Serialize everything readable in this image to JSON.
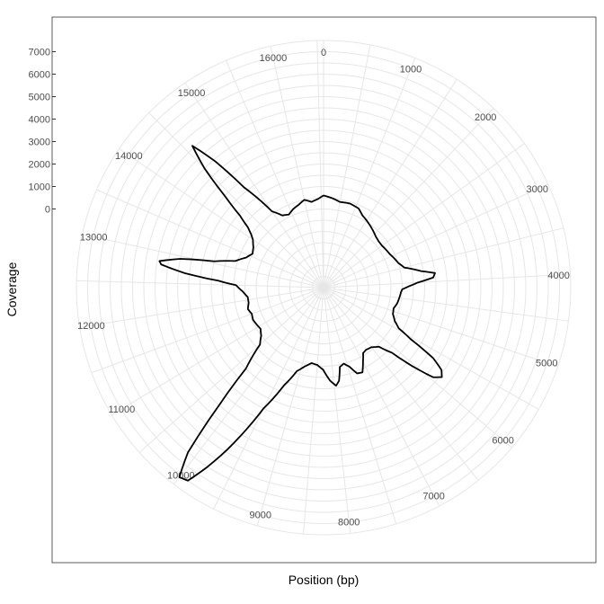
{
  "chart_data": {
    "type": "line",
    "coordinate_system": "polar",
    "xlabel": "Position (bp)",
    "ylabel": "Coverage",
    "grid": true,
    "xlim": [
      0,
      16569
    ],
    "ylim": [
      -3500,
      7500
    ],
    "x_ticks": [
      0,
      1000,
      2000,
      3000,
      4000,
      5000,
      6000,
      7000,
      8000,
      9000,
      10000,
      11000,
      12000,
      13000,
      14000,
      15000,
      16000
    ],
    "y_ticks": [
      0,
      1000,
      2000,
      3000,
      4000,
      5000,
      6000,
      7000
    ],
    "series": [
      {
        "x": [
          0,
          250,
          500,
          800,
          1100,
          1300,
          1500,
          1700,
          1900,
          2100,
          2300,
          2500,
          2700,
          2900,
          3100,
          3300,
          3500,
          3700,
          3800,
          3900,
          4000,
          4100,
          4200,
          4300,
          4500,
          4700,
          4900,
          5100,
          5300,
          5450,
          5550,
          5650,
          5750,
          5850,
          5950,
          6050,
          6150,
          6300,
          6500,
          6700,
          6850,
          7000,
          7150,
          7300,
          7450,
          7600,
          7750,
          7850,
          7950,
          8100,
          8300,
          8500,
          8700,
          8900,
          9100,
          9300,
          9500,
          9600,
          9700,
          9800,
          9900,
          10000,
          10100,
          10200,
          10300,
          10500,
          10700,
          10900,
          11100,
          11300,
          11500,
          11700,
          11900,
          12100,
          12300,
          12500,
          12600,
          12700,
          12800,
          12850,
          12950,
          13050,
          13200,
          13400,
          13600,
          13800,
          14000,
          14100,
          14200,
          14300,
          14400,
          14500,
          14600,
          14700,
          14800,
          15000,
          15200,
          15400,
          15600,
          15800,
          16000,
          16200,
          16400,
          16569
        ],
        "y": [
          600,
          500,
          380,
          420,
          350,
          150,
          50,
          -50,
          -150,
          -250,
          -300,
          -300,
          -250,
          -200,
          -100,
          0,
          200,
          900,
          1500,
          1400,
          700,
          300,
          0,
          -50,
          -100,
          -150,
          -250,
          -200,
          0,
          300,
          1000,
          2300,
          2900,
          3100,
          2800,
          1800,
          700,
          100,
          -100,
          -150,
          -100,
          250,
          650,
          600,
          200,
          0,
          100,
          700,
          900,
          650,
          150,
          -50,
          -100,
          100,
          400,
          1200,
          2500,
          3700,
          4900,
          6000,
          7000,
          7100,
          6000,
          3500,
          1500,
          300,
          0,
          -150,
          -100,
          -50,
          -100,
          0,
          -100,
          -100,
          100,
          400,
          1200,
          2700,
          3800,
          3900,
          3000,
          1500,
          600,
          200,
          0,
          100,
          300,
          500,
          800,
          1400,
          2500,
          4000,
          5100,
          3900,
          2200,
          600,
          200,
          100,
          250,
          350,
          500,
          350,
          450,
          600
        ]
      }
    ]
  }
}
